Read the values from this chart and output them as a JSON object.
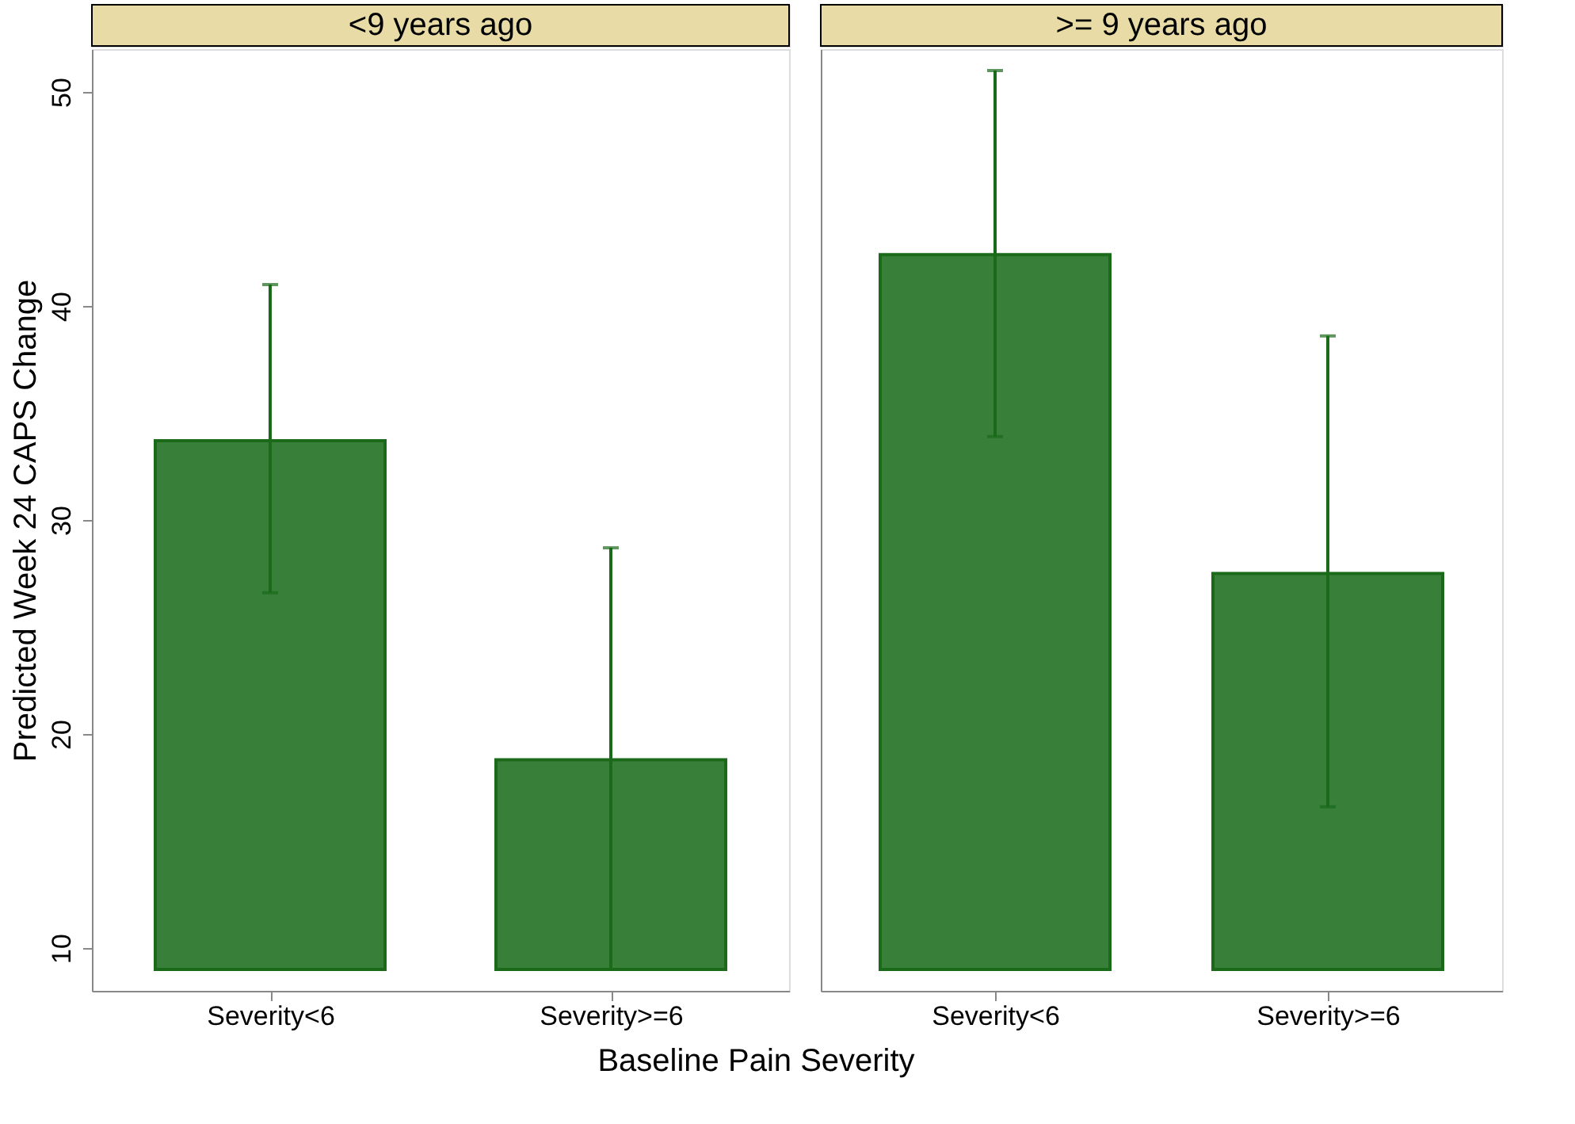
{
  "chart_data": [
    {
      "type": "bar",
      "title": "<9 years ago",
      "ylabel": "Predicted Week 24 CAPS Change",
      "xlabel": "Baseline Pain Severity",
      "categories": [
        "Severity<6",
        "Severity>=6"
      ],
      "base": [
        9,
        9
      ],
      "values": [
        24.7,
        9.8
      ],
      "errors": [
        [
          26.6,
          41.0
        ],
        [
          9.0,
          28.7
        ]
      ],
      "color": "#38803a",
      "ylim": [
        8,
        52
      ],
      "yticks": [
        10,
        20,
        30,
        40,
        50
      ],
      "grid": false
    },
    {
      "type": "bar",
      "title": ">= 9 years ago",
      "categories": [
        "Severity<6",
        "Severity>=6"
      ],
      "base": [
        9,
        9
      ],
      "values": [
        33.4,
        18.5
      ],
      "errors": [
        [
          33.9,
          51.0
        ],
        [
          16.6,
          38.6
        ]
      ],
      "color": "#38803a",
      "ylim": [
        8,
        52
      ],
      "yticks": [
        10,
        20,
        30,
        40,
        50
      ],
      "grid": false,
      "tick_labels": "x"
    }
  ]
}
